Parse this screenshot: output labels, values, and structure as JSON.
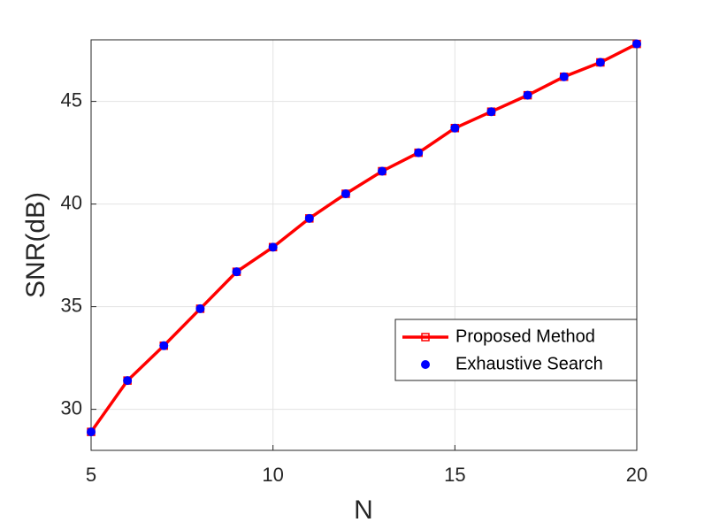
{
  "chart_data": {
    "type": "line",
    "x_label": "N",
    "y_label": "SNR(dB)",
    "x": [
      5,
      6,
      7,
      8,
      9,
      10,
      11,
      12,
      13,
      14,
      15,
      16,
      17,
      18,
      19,
      20
    ],
    "series": [
      {
        "name": "Proposed Method",
        "color": "#ff0000",
        "marker": "square",
        "line": true,
        "values": [
          28.9,
          31.4,
          33.1,
          34.9,
          36.7,
          37.9,
          39.3,
          40.5,
          41.6,
          42.5,
          43.7,
          44.5,
          45.3,
          46.2,
          46.9,
          47.8
        ]
      },
      {
        "name": "Exhaustive Search",
        "color": "#0000ff",
        "marker": "circle",
        "line": false,
        "values": [
          28.9,
          31.4,
          33.1,
          34.9,
          36.7,
          37.9,
          39.3,
          40.5,
          41.6,
          42.5,
          43.7,
          44.5,
          45.3,
          46.2,
          46.9,
          47.8
        ]
      }
    ],
    "xlim": [
      5,
      20
    ],
    "xticks": [
      5,
      10,
      15,
      20
    ],
    "ylim": [
      28,
      48
    ],
    "yticks": [
      30,
      35,
      40,
      45
    ],
    "grid": true,
    "legend": "lower right"
  }
}
